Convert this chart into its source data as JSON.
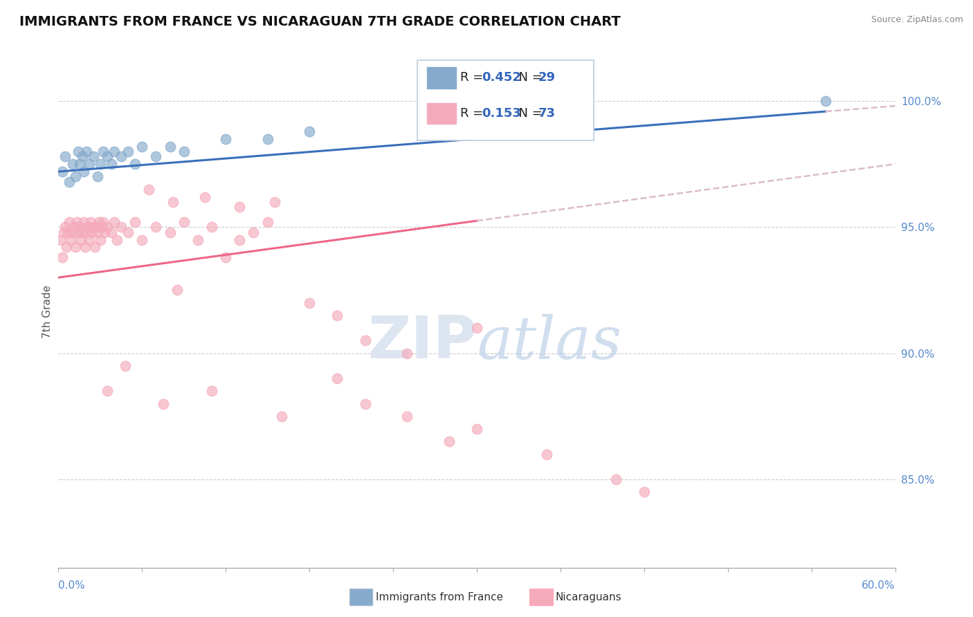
{
  "title": "IMMIGRANTS FROM FRANCE VS NICARAGUAN 7TH GRADE CORRELATION CHART",
  "source": "Source: ZipAtlas.com",
  "ylabel": "7th Grade",
  "xmin": 0.0,
  "xmax": 60.0,
  "ymin": 81.5,
  "ymax": 101.8,
  "right_yticks": [
    85.0,
    90.0,
    95.0,
    100.0
  ],
  "right_yticklabels": [
    "85.0%",
    "90.0%",
    "95.0%",
    "100.0%"
  ],
  "blue_R": 0.452,
  "blue_N": 29,
  "pink_R": 0.153,
  "pink_N": 73,
  "blue_color": "#85AACC",
  "pink_color": "#F4AABB",
  "blue_line_color": "#3A6FBB",
  "pink_line_color": "#EE6688",
  "dashed_color": "#DDBBCC",
  "legend_label_france": "Immigrants from France",
  "legend_label_nicaraguans": "Nicaraguans",
  "watermark_zip": "ZIP",
  "watermark_atlas": "atlas",
  "blue_scatter_x": [
    0.3,
    0.5,
    0.8,
    1.0,
    1.2,
    1.4,
    1.5,
    1.7,
    1.8,
    2.0,
    2.2,
    2.5,
    2.8,
    3.0,
    3.2,
    3.5,
    3.8,
    4.0,
    4.5,
    5.0,
    5.5,
    6.0,
    7.0,
    8.0,
    9.0,
    12.0,
    15.0,
    18.0,
    55.0
  ],
  "blue_scatter_y": [
    97.2,
    97.8,
    96.8,
    97.5,
    97.0,
    98.0,
    97.5,
    97.8,
    97.2,
    98.0,
    97.5,
    97.8,
    97.0,
    97.5,
    98.0,
    97.8,
    97.5,
    98.0,
    97.8,
    98.0,
    97.5,
    98.2,
    97.8,
    98.2,
    98.0,
    98.5,
    98.5,
    98.8,
    100.0
  ],
  "pink_scatter_x": [
    0.2,
    0.3,
    0.4,
    0.5,
    0.6,
    0.7,
    0.8,
    0.9,
    1.0,
    1.1,
    1.2,
    1.3,
    1.4,
    1.5,
    1.6,
    1.7,
    1.8,
    1.9,
    2.0,
    2.1,
    2.2,
    2.3,
    2.4,
    2.5,
    2.6,
    2.7,
    2.8,
    2.9,
    3.0,
    3.1,
    3.2,
    3.3,
    3.5,
    3.8,
    4.0,
    4.2,
    4.5,
    5.0,
    5.5,
    6.0,
    7.0,
    8.0,
    8.5,
    9.0,
    10.0,
    11.0,
    12.0,
    13.0,
    14.0,
    15.0,
    6.5,
    8.2,
    10.5,
    13.0,
    15.5,
    18.0,
    20.0,
    22.0,
    25.0,
    30.0,
    3.5,
    4.8,
    7.5,
    11.0,
    16.0,
    20.0,
    22.0,
    25.0,
    28.0,
    30.0,
    35.0,
    40.0,
    42.0
  ],
  "pink_scatter_y": [
    94.5,
    93.8,
    94.8,
    95.0,
    94.2,
    94.8,
    95.2,
    94.5,
    94.8,
    95.0,
    94.2,
    95.2,
    94.8,
    95.0,
    94.5,
    94.8,
    95.2,
    94.2,
    94.8,
    95.0,
    94.5,
    95.2,
    94.8,
    95.0,
    94.2,
    95.0,
    94.8,
    95.2,
    94.5,
    95.0,
    95.2,
    94.8,
    95.0,
    94.8,
    95.2,
    94.5,
    95.0,
    94.8,
    95.2,
    94.5,
    95.0,
    94.8,
    92.5,
    95.2,
    94.5,
    95.0,
    93.8,
    94.5,
    94.8,
    95.2,
    96.5,
    96.0,
    96.2,
    95.8,
    96.0,
    92.0,
    91.5,
    90.5,
    90.0,
    91.0,
    88.5,
    89.5,
    88.0,
    88.5,
    87.5,
    89.0,
    88.0,
    87.5,
    86.5,
    87.0,
    86.0,
    85.0,
    84.5
  ],
  "blue_line_x0": 0.0,
  "blue_line_y0": 97.2,
  "blue_line_x1": 60.0,
  "blue_line_y1": 99.8,
  "blue_solid_xmax": 55.0,
  "pink_line_x0": 0.0,
  "pink_line_y0": 93.0,
  "pink_line_x1": 60.0,
  "pink_line_y1": 97.5,
  "pink_solid_xmax": 30.0
}
